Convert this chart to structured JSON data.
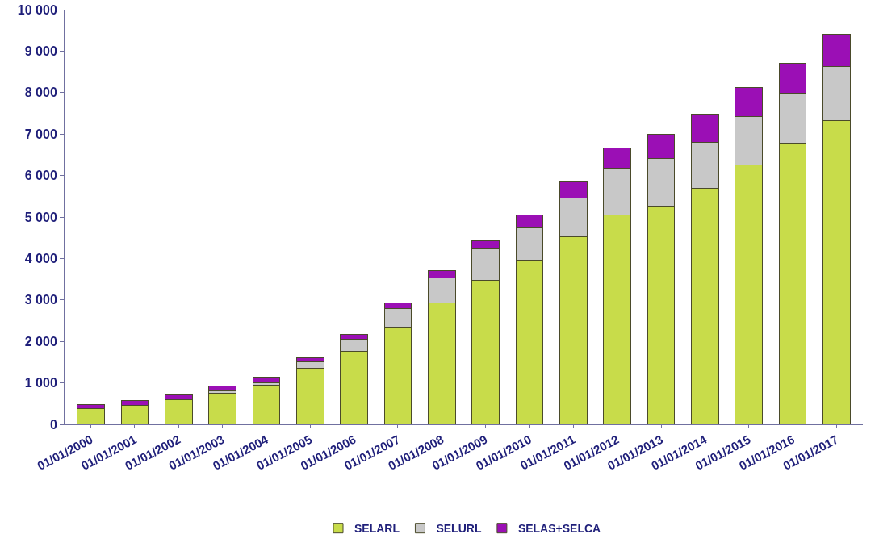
{
  "chart_data": {
    "type": "bar",
    "stacked": true,
    "legend": "bottom",
    "grid": false,
    "categories": [
      "01/01/2000",
      "01/01/2001",
      "01/01/2002",
      "01/01/2003",
      "01/01/2004",
      "01/01/2005",
      "01/01/2006",
      "01/01/2007",
      "01/01/2008",
      "01/01/2009",
      "01/01/2010",
      "01/01/2011",
      "01/01/2012",
      "01/01/2013",
      "01/01/2014",
      "01/01/2015",
      "01/01/2016",
      "01/01/2017"
    ],
    "series": [
      {
        "name": "SELARL",
        "color": "#c8dc4a",
        "values": [
          380,
          460,
          590,
          740,
          950,
          1360,
          1760,
          2350,
          2920,
          3470,
          3950,
          4520,
          5050,
          5270,
          5700,
          6250,
          6780,
          7320
        ]
      },
      {
        "name": "SELURL",
        "color": "#c8c8c8",
        "values": [
          0,
          0,
          0,
          60,
          60,
          150,
          300,
          440,
          610,
          760,
          790,
          940,
          1120,
          1140,
          1100,
          1180,
          1200,
          1300
        ]
      },
      {
        "name": "SELAS+SELCA",
        "color": "#9b0fb5",
        "values": [
          100,
          110,
          120,
          120,
          120,
          90,
          110,
          130,
          180,
          200,
          300,
          400,
          500,
          590,
          680,
          700,
          730,
          790
        ]
      }
    ],
    "ylim": [
      0,
      10000
    ],
    "yticks": [
      0,
      {
        "value": 1000,
        "label": "1 000"
      },
      {
        "value": 2000,
        "label": "2 000"
      },
      {
        "value": 3000,
        "label": "3 000"
      },
      {
        "value": 4000,
        "label": "4 000"
      },
      {
        "value": 5000,
        "label": "5 000"
      },
      {
        "value": 6000,
        "label": "6 000"
      },
      {
        "value": 7000,
        "label": "7 000"
      },
      {
        "value": 8000,
        "label": "8 000"
      },
      {
        "value": 9000,
        "label": "9 000"
      },
      {
        "value": 10000,
        "label": "10 000"
      }
    ]
  }
}
